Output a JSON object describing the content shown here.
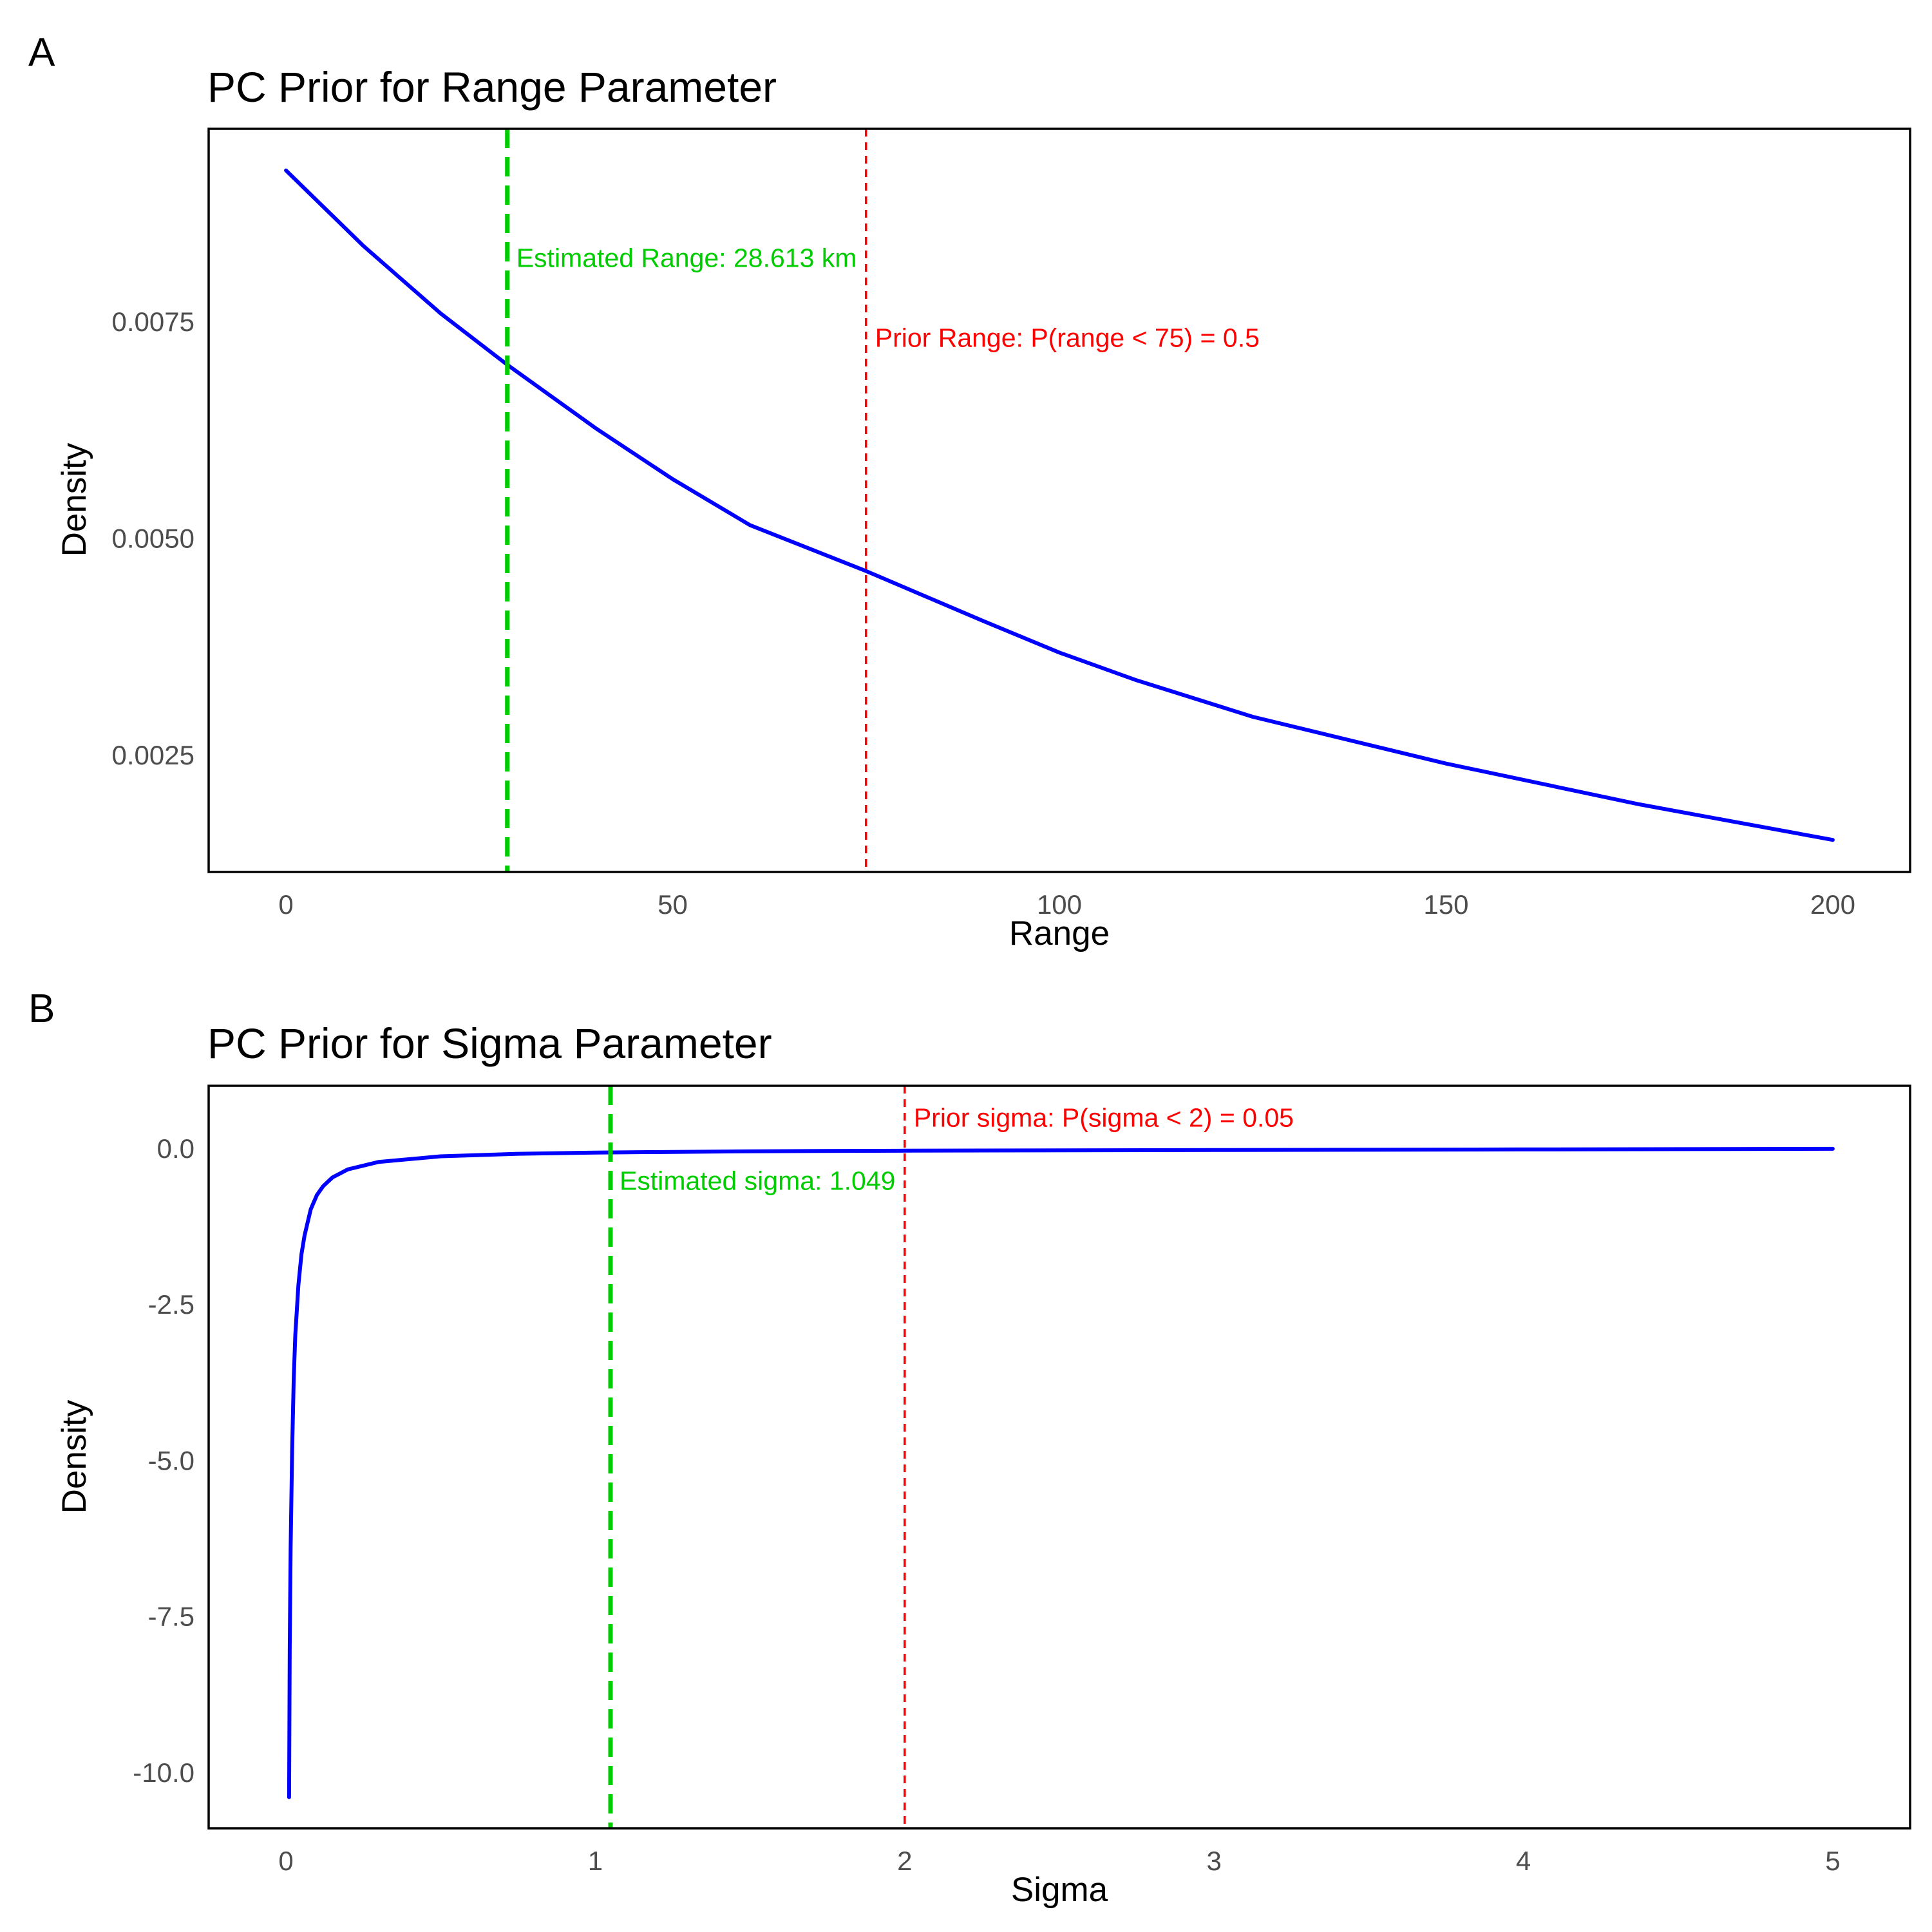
{
  "colors": {
    "curve": "#0000ff",
    "estimate": "#00cd00",
    "prior": "#ff0000",
    "frame": "#000000",
    "tick_text": "#4d4d4d"
  },
  "chart_data": [
    {
      "type": "line",
      "panel_label": "A",
      "title": "PC Prior for Range Parameter",
      "xlabel": "Range",
      "ylabel": "Density",
      "xlim": [
        -10,
        210
      ],
      "ylim": [
        0.00115,
        0.00972
      ],
      "grid": false,
      "legend": "none",
      "x_ticks": [
        0,
        50,
        100,
        150,
        200
      ],
      "x_tick_labels": [
        "0",
        "50",
        "100",
        "150",
        "200"
      ],
      "y_ticks": [
        0.0025,
        0.005,
        0.0075
      ],
      "y_tick_labels": [
        "0.0025",
        "0.0050",
        "0.0075"
      ],
      "series": [
        {
          "x": [
            0,
            10,
            20,
            28.6,
            40,
            50,
            60,
            75,
            90,
            100,
            110,
            125,
            150,
            175,
            200
          ],
          "y": [
            0.00924,
            0.00837,
            0.00759,
            0.007,
            0.00627,
            0.00568,
            0.00515,
            0.00462,
            0.00405,
            0.00368,
            0.00336,
            0.00294,
            0.0024,
            0.00193,
            0.00152
          ]
        }
      ],
      "vlines": [
        {
          "x": 28.613,
          "style": "estimate",
          "label": "Estimated Range: 28.613 km",
          "label_y": 0.00823
        },
        {
          "x": 75,
          "style": "prior",
          "label": "Prior Range: P(range < 75) = 0.5",
          "label_y": 0.00731
        }
      ]
    },
    {
      "type": "line",
      "panel_label": "B",
      "title": "PC Prior for Sigma Parameter",
      "xlabel": "Sigma",
      "ylabel": "Density",
      "xlim": [
        -0.25,
        5.25
      ],
      "ylim": [
        -10.9,
        1.0
      ],
      "grid": false,
      "legend": "none",
      "x_ticks": [
        0,
        1,
        2,
        3,
        4,
        5
      ],
      "x_tick_labels": [
        "0",
        "1",
        "2",
        "3",
        "4",
        "5"
      ],
      "y_ticks": [
        -10,
        -7.5,
        -5,
        -2.5,
        0
      ],
      "y_tick_labels": [
        "-10.0",
        "-7.5",
        "-5.0",
        "-2.5",
        "0.0"
      ],
      "series": [
        {
          "x": [
            0.01,
            0.012,
            0.015,
            0.02,
            0.025,
            0.03,
            0.04,
            0.05,
            0.06,
            0.08,
            0.1,
            0.12,
            0.15,
            0.2,
            0.3,
            0.5,
            0.75,
            1.0,
            1.5,
            2.0,
            3.0,
            4.0,
            5.0
          ],
          "y": [
            -10.4,
            -8.0,
            -6.4,
            -4.8,
            -3.7,
            -3.0,
            -2.2,
            -1.7,
            -1.4,
            -0.98,
            -0.75,
            -0.61,
            -0.47,
            -0.34,
            -0.22,
            -0.13,
            -0.09,
            -0.07,
            -0.05,
            -0.04,
            -0.03,
            -0.02,
            -0.01
          ]
        }
      ],
      "vlines": [
        {
          "x": 1.049,
          "style": "estimate",
          "label": "Estimated sigma: 1.049",
          "label_y": -0.52
        },
        {
          "x": 2,
          "style": "prior",
          "label": "Prior sigma: P(sigma < 2) = 0.05",
          "label_y": 0.49
        }
      ]
    }
  ]
}
